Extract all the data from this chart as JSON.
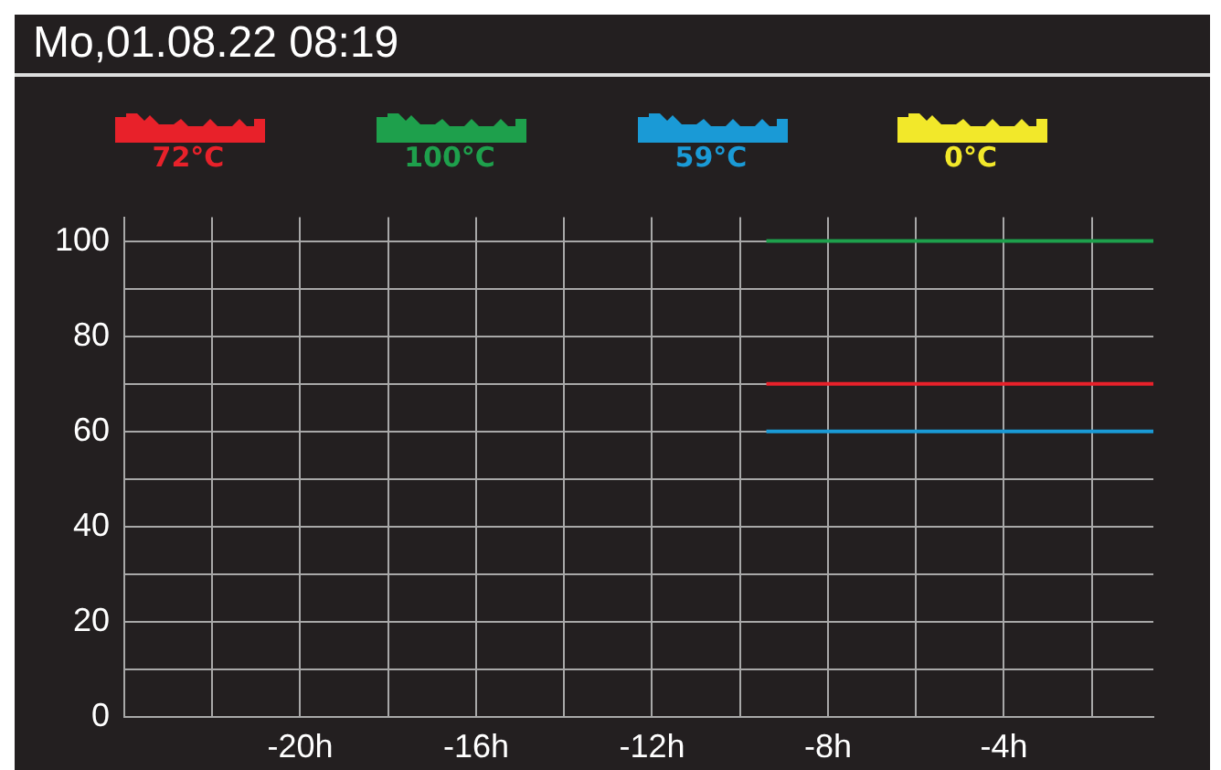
{
  "chart_data": {
    "type": "line",
    "title": "Mo,01.08.22 08:19",
    "annotations": [
      "72°C",
      "100°C",
      "59°C",
      "0°C"
    ],
    "x": [
      -9.4,
      -0.6
    ],
    "series": [
      {
        "color": "#e8212a",
        "values": [
          70,
          70
        ]
      },
      {
        "color": "#1ea04c",
        "values": [
          100,
          100
        ]
      },
      {
        "color": "#1a9ad6",
        "values": [
          60,
          60
        ]
      },
      {
        "color": "#f2e82a",
        "values": [
          null,
          null
        ]
      }
    ],
    "xlim": [
      -24,
      -0.6
    ],
    "xticks": [
      {
        "value": -22,
        "label": null
      },
      {
        "value": -20,
        "label": "-20h"
      },
      {
        "value": -18,
        "label": null
      },
      {
        "value": -16,
        "label": "-16h"
      },
      {
        "value": -14,
        "label": null
      },
      {
        "value": -12,
        "label": "-12h"
      },
      {
        "value": -10,
        "label": null
      },
      {
        "value": -8,
        "label": "-8h"
      },
      {
        "value": -6,
        "label": null
      },
      {
        "value": -4,
        "label": "-4h"
      },
      {
        "value": -2,
        "label": null
      }
    ],
    "ylim": [
      0,
      105
    ],
    "yticks": [
      0,
      {
        "value": 10,
        "label": null
      },
      20,
      {
        "value": 30,
        "label": null
      },
      40,
      {
        "value": 50,
        "label": null
      },
      60,
      {
        "value": 70,
        "label": null
      },
      80,
      {
        "value": 90,
        "label": null
      },
      100
    ],
    "grid": true,
    "legend": false,
    "marker": "none",
    "line_style": "solid"
  }
}
